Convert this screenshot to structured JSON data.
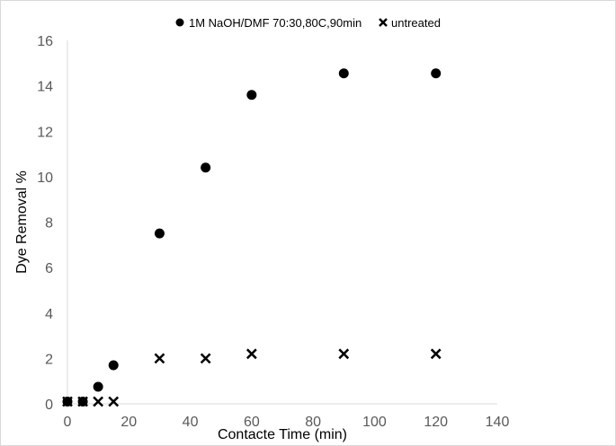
{
  "chart_data": {
    "type": "scatter",
    "title": "",
    "xlabel": "Contacte Time (min)",
    "ylabel": "Dye Removal %",
    "xlim": [
      0,
      140
    ],
    "ylim": [
      0,
      16
    ],
    "xticks": [
      0,
      20,
      40,
      60,
      80,
      100,
      120,
      140
    ],
    "yticks": [
      0,
      2,
      4,
      6,
      8,
      10,
      12,
      14,
      16
    ],
    "grid": false,
    "legend_position": "top",
    "series": [
      {
        "name": "1M NaOH/DMF 70:30,80C,90min",
        "marker": "circle",
        "color": "#000000",
        "points": [
          {
            "x": 0,
            "y": 0.1
          },
          {
            "x": 5,
            "y": 0.1
          },
          {
            "x": 10,
            "y": 0.75
          },
          {
            "x": 15,
            "y": 1.7
          },
          {
            "x": 30,
            "y": 7.5
          },
          {
            "x": 45,
            "y": 10.4
          },
          {
            "x": 60,
            "y": 13.6
          },
          {
            "x": 90,
            "y": 14.55
          },
          {
            "x": 120,
            "y": 14.55
          }
        ]
      },
      {
        "name": "untreated",
        "marker": "x",
        "color": "#000000",
        "points": [
          {
            "x": 0,
            "y": 0.1
          },
          {
            "x": 5,
            "y": 0.1
          },
          {
            "x": 10,
            "y": 0.1
          },
          {
            "x": 15,
            "y": 0.1
          },
          {
            "x": 30,
            "y": 2.0
          },
          {
            "x": 45,
            "y": 2.0
          },
          {
            "x": 60,
            "y": 2.2
          },
          {
            "x": 90,
            "y": 2.2
          },
          {
            "x": 120,
            "y": 2.2
          }
        ]
      }
    ]
  }
}
